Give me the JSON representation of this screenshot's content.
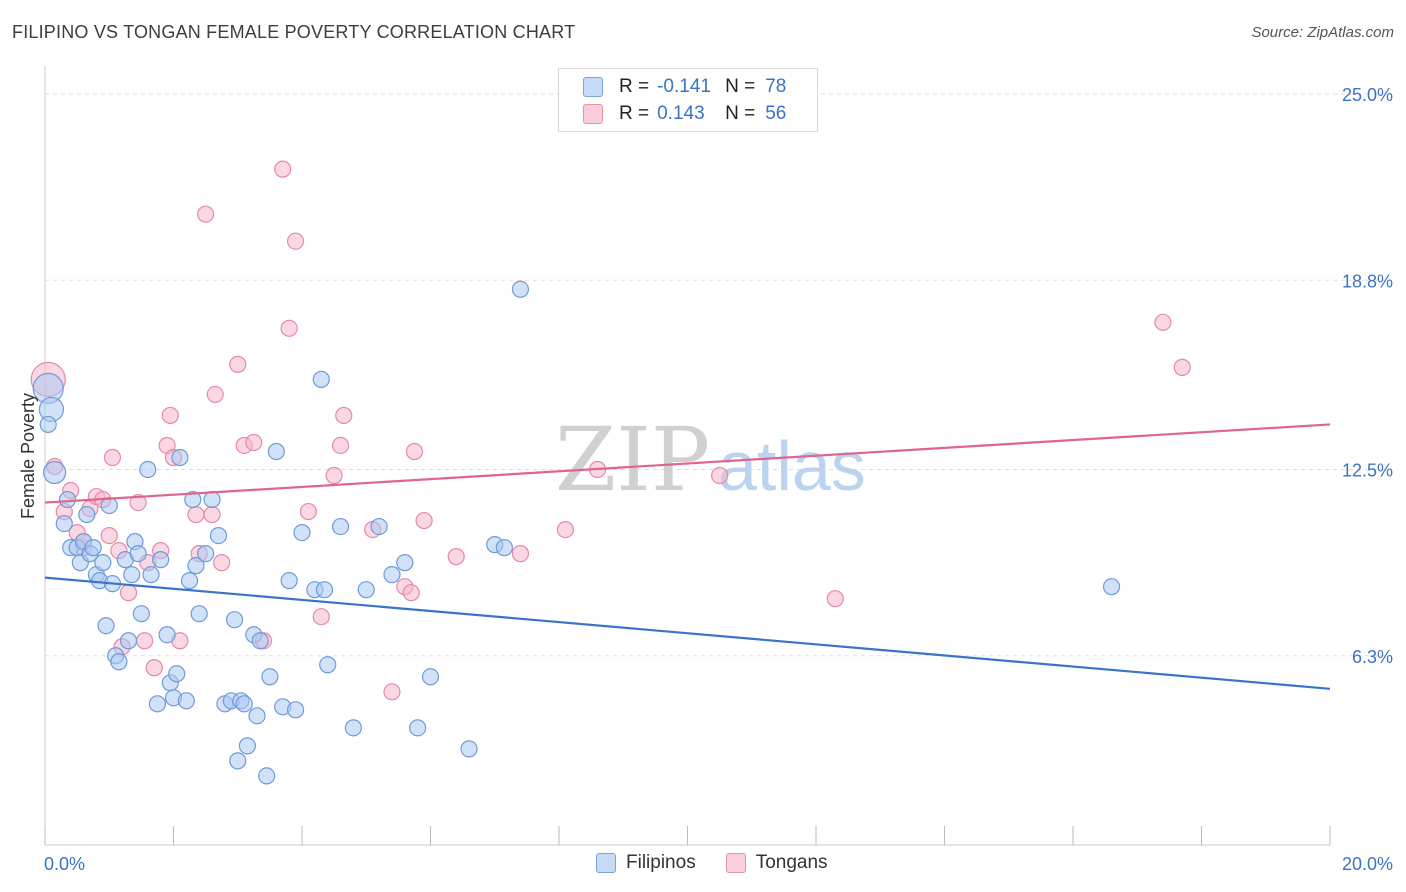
{
  "title": "FILIPINO VS TONGAN FEMALE POVERTY CORRELATION CHART",
  "source": "Source: ZipAtlas.com",
  "colors": {
    "blue": "#3b73c9",
    "blue_fill": "#a9c8f2",
    "pink": "#e0648f",
    "pink_fill": "#f5b7cb",
    "grid": "#dddddd"
  },
  "legend": {
    "rows": [
      {
        "r_label": "R =",
        "r_value": "-0.141",
        "n_label": "N =",
        "n_value": "78"
      },
      {
        "r_label": "R =",
        "r_value": "0.143",
        "n_label": "N =",
        "n_value": "56"
      }
    ]
  },
  "watermark": {
    "zip": "ZIP",
    "atlas": "atlas"
  },
  "chart_data": {
    "type": "scatter",
    "ylabel": "Female Poverty",
    "xlabel": "",
    "xlim": [
      0,
      20
    ],
    "ylim": [
      0,
      25.5
    ],
    "x_tick_labels": [
      "0.0%",
      "20.0%"
    ],
    "y_ticks": [
      6.3,
      12.5,
      18.8,
      25.0
    ],
    "y_tick_labels": [
      "6.3%",
      "12.5%",
      "18.8%",
      "25.0%"
    ],
    "grid": true,
    "series": [
      {
        "name": "Filipinos",
        "trend": {
          "x": [
            0,
            20
          ],
          "y": [
            8.9,
            5.2
          ]
        },
        "points": [
          [
            0.05,
            15.2
          ],
          [
            0.1,
            14.5
          ],
          [
            0.05,
            14.0
          ],
          [
            0.15,
            12.4
          ],
          [
            0.3,
            10.7
          ],
          [
            0.35,
            11.5
          ],
          [
            0.4,
            9.9
          ],
          [
            0.5,
            9.9
          ],
          [
            0.55,
            9.4
          ],
          [
            0.6,
            10.1
          ],
          [
            0.65,
            11.0
          ],
          [
            0.7,
            9.7
          ],
          [
            0.75,
            9.9
          ],
          [
            0.8,
            9.0
          ],
          [
            0.85,
            8.8
          ],
          [
            0.9,
            9.4
          ],
          [
            0.95,
            7.3
          ],
          [
            1.0,
            11.3
          ],
          [
            1.05,
            8.7
          ],
          [
            1.1,
            6.3
          ],
          [
            1.15,
            6.1
          ],
          [
            1.25,
            9.5
          ],
          [
            1.3,
            6.8
          ],
          [
            1.4,
            10.1
          ],
          [
            1.45,
            9.7
          ],
          [
            1.5,
            7.7
          ],
          [
            1.6,
            12.5
          ],
          [
            1.65,
            9.0
          ],
          [
            1.75,
            4.7
          ],
          [
            1.8,
            9.5
          ],
          [
            1.9,
            7.0
          ],
          [
            1.95,
            5.4
          ],
          [
            2.0,
            4.9
          ],
          [
            2.05,
            5.7
          ],
          [
            2.1,
            12.9
          ],
          [
            2.2,
            4.8
          ],
          [
            2.25,
            8.8
          ],
          [
            2.3,
            11.5
          ],
          [
            2.35,
            9.3
          ],
          [
            2.4,
            7.7
          ],
          [
            2.5,
            9.7
          ],
          [
            2.6,
            11.5
          ],
          [
            2.7,
            10.3
          ],
          [
            2.8,
            4.7
          ],
          [
            2.9,
            4.8
          ],
          [
            2.95,
            7.5
          ],
          [
            3.0,
            2.8
          ],
          [
            3.05,
            4.8
          ],
          [
            3.1,
            4.7
          ],
          [
            3.15,
            3.3
          ],
          [
            3.25,
            7.0
          ],
          [
            3.3,
            4.3
          ],
          [
            3.35,
            6.8
          ],
          [
            3.45,
            2.3
          ],
          [
            3.5,
            5.6
          ],
          [
            3.6,
            13.1
          ],
          [
            3.7,
            4.6
          ],
          [
            3.8,
            8.8
          ],
          [
            3.9,
            4.5
          ],
          [
            4.0,
            10.4
          ],
          [
            4.2,
            8.5
          ],
          [
            4.3,
            15.5
          ],
          [
            4.35,
            8.5
          ],
          [
            4.4,
            6.0
          ],
          [
            4.6,
            10.6
          ],
          [
            4.8,
            3.9
          ],
          [
            5.0,
            8.5
          ],
          [
            5.2,
            10.6
          ],
          [
            5.4,
            9.0
          ],
          [
            5.6,
            9.4
          ],
          [
            5.8,
            3.9
          ],
          [
            6.0,
            5.6
          ],
          [
            6.6,
            3.2
          ],
          [
            7.0,
            10.0
          ],
          [
            7.15,
            9.9
          ],
          [
            7.4,
            18.5
          ],
          [
            16.6,
            8.6
          ],
          [
            1.35,
            9.0
          ]
        ]
      },
      {
        "name": "Tongans",
        "trend": {
          "x": [
            0,
            20
          ],
          "y": [
            11.4,
            14.0
          ]
        },
        "points": [
          [
            0.05,
            15.5
          ],
          [
            0.15,
            12.6
          ],
          [
            0.3,
            11.1
          ],
          [
            0.4,
            11.8
          ],
          [
            0.5,
            10.4
          ],
          [
            0.6,
            9.9
          ],
          [
            0.7,
            11.2
          ],
          [
            0.8,
            11.6
          ],
          [
            0.9,
            11.5
          ],
          [
            1.0,
            10.3
          ],
          [
            1.05,
            12.9
          ],
          [
            1.15,
            9.8
          ],
          [
            1.2,
            6.6
          ],
          [
            1.3,
            8.4
          ],
          [
            1.45,
            11.4
          ],
          [
            1.55,
            6.8
          ],
          [
            1.7,
            5.9
          ],
          [
            1.8,
            9.8
          ],
          [
            1.9,
            13.3
          ],
          [
            1.95,
            14.3
          ],
          [
            2.0,
            12.9
          ],
          [
            2.1,
            6.8
          ],
          [
            2.35,
            11.0
          ],
          [
            2.4,
            9.7
          ],
          [
            2.5,
            21.0
          ],
          [
            2.6,
            11.0
          ],
          [
            2.65,
            15.0
          ],
          [
            2.75,
            9.4
          ],
          [
            3.0,
            16.0
          ],
          [
            3.1,
            13.3
          ],
          [
            3.25,
            13.4
          ],
          [
            3.4,
            6.8
          ],
          [
            3.7,
            22.5
          ],
          [
            3.8,
            17.2
          ],
          [
            3.9,
            20.1
          ],
          [
            4.1,
            11.1
          ],
          [
            4.3,
            7.6
          ],
          [
            4.5,
            12.3
          ],
          [
            4.6,
            13.3
          ],
          [
            4.65,
            14.3
          ],
          [
            5.1,
            10.5
          ],
          [
            5.4,
            5.1
          ],
          [
            5.6,
            8.6
          ],
          [
            5.7,
            8.4
          ],
          [
            5.75,
            13.1
          ],
          [
            5.9,
            10.8
          ],
          [
            6.4,
            9.6
          ],
          [
            7.4,
            9.7
          ],
          [
            8.1,
            10.5
          ],
          [
            8.6,
            12.5
          ],
          [
            10.5,
            12.3
          ],
          [
            12.3,
            8.2
          ],
          [
            17.4,
            17.4
          ],
          [
            17.7,
            15.9
          ],
          [
            0.6,
            10.1
          ],
          [
            1.6,
            9.4
          ]
        ]
      }
    ]
  }
}
